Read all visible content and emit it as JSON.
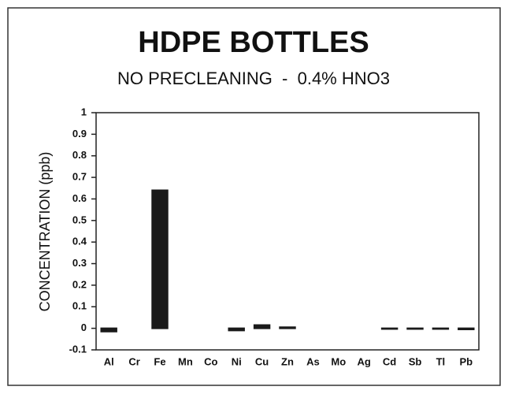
{
  "chart_data": {
    "type": "bar",
    "title": "HDPE BOTTLES",
    "subtitle": "NO PRECLEANING  -  0.4% HNO3",
    "y_label": "CONCENTRATION (ppb)",
    "categories": [
      "Al",
      "Cr",
      "Fe",
      "Mn",
      "Co",
      "Ni",
      "Cu",
      "Zn",
      "As",
      "Mo",
      "Ag",
      "Cd",
      "Sb",
      "Tl",
      "Pb"
    ],
    "values": [
      -0.015,
      0,
      0.64,
      0,
      0,
      -0.01,
      0.015,
      0.005,
      0,
      0,
      0,
      -0.003,
      -0.003,
      -0.003,
      -0.005
    ],
    "color": "#1a1a1a",
    "ylim": [
      -0.1,
      1
    ],
    "yticks": [
      -0.1,
      0,
      0.1,
      0.2,
      0.3,
      0.4,
      0.5,
      0.6,
      0.7,
      0.8,
      0.9,
      1
    ],
    "grid": false
  }
}
